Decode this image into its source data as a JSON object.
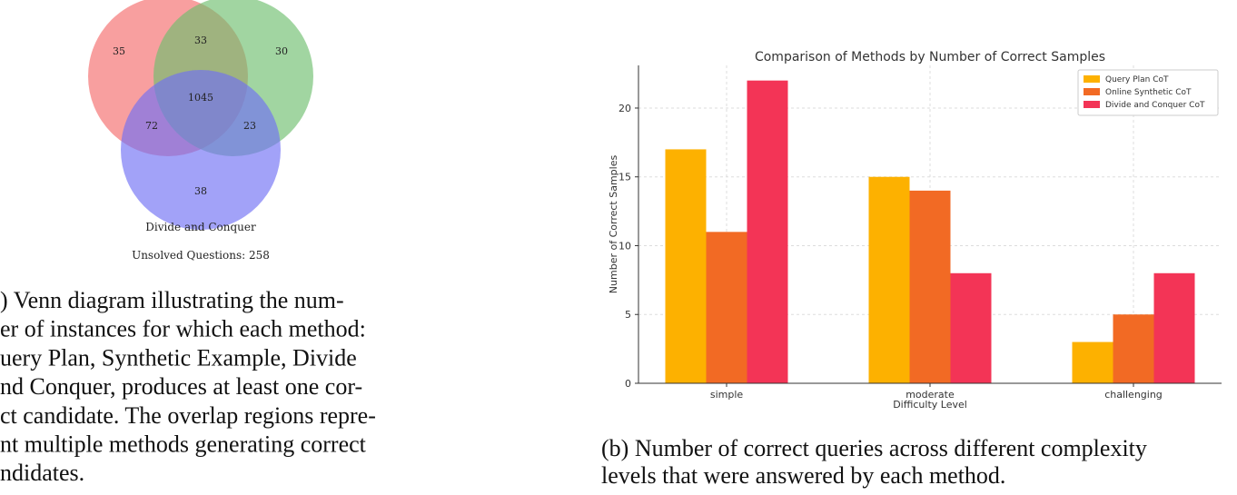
{
  "venn": {
    "regions": [
      35,
      33,
      30,
      1045,
      72,
      23,
      38
    ],
    "label": "Divide and Conquer",
    "unsolved": "Unsolved Questions: 258",
    "caption": [
      ") Venn diagram illustrating the num-",
      "er of instances for which each method:",
      "uery Plan, Synthetic Example, Divide",
      "nd Conquer, produces at least one cor-",
      "ct candidate. The overlap regions repre-",
      "nt multiple methods generating correct",
      "ndidates."
    ]
  },
  "chart_data": {
    "type": "bar",
    "title": "Comparison of Methods by Number of Correct Samples",
    "x_label": "Difficulty Level",
    "y_label": "Number of Correct Samples",
    "categories": [
      "simple",
      "moderate",
      "challenging"
    ],
    "series": [
      {
        "name": "Query Plan CoT",
        "color": "#fdb100",
        "values": [
          17,
          15,
          3
        ]
      },
      {
        "name": "Online Synthetic CoT",
        "color": "#f26a24",
        "values": [
          11,
          14,
          5
        ]
      },
      {
        "name": "Divide and Conquer CoT",
        "color": "#f33456",
        "values": [
          22,
          8,
          8
        ]
      }
    ],
    "ylim": [
      0,
      23.1
    ],
    "yticks": [
      0,
      5,
      10,
      15,
      20
    ],
    "grid": true,
    "legend": "upper right"
  },
  "caption_b": [
    "(b) Number of correct queries across different complexity",
    "levels that were answered by each method."
  ]
}
